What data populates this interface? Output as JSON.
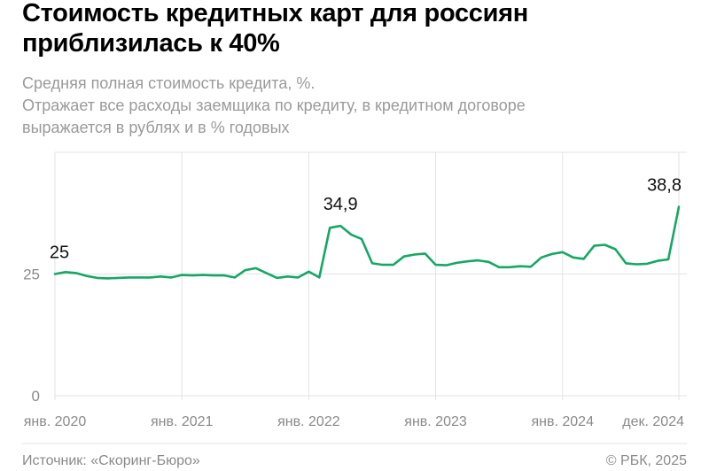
{
  "title": "Стоимость кредитных карт для россиян приблизилась к 40%",
  "subtitle_lines": [
    "Средняя полная стоимость кредита, %.",
    "Отражает все расходы заемщика по кредиту, в кредитном договоре",
    "выражается в рублях и в % годовых"
  ],
  "footer": {
    "source": "Источник: «Скоринг-Бюро»",
    "copyright": "© РБК, 2025"
  },
  "colors": {
    "line": "#16a765",
    "grid": "#e3e3e3",
    "tick_text": "#8a8a8a",
    "subtitle": "#9a9a9a"
  },
  "chart_data": {
    "type": "line",
    "title": "Стоимость кредитных карт для россиян приблизилась к 40%",
    "ylim": [
      0,
      50
    ],
    "yticks": [
      0,
      25
    ],
    "ytick_labels": [
      "0",
      "25"
    ],
    "grid": true,
    "x_start": "2020-01",
    "x_end": "2024-12",
    "xtick_labels": [
      {
        "label": "янв. 2020",
        "month": "2020-01"
      },
      {
        "label": "янв. 2021",
        "month": "2021-01"
      },
      {
        "label": "янв. 2022",
        "month": "2022-01"
      },
      {
        "label": "янв. 2023",
        "month": "2023-01"
      },
      {
        "label": "янв. 2024",
        "month": "2024-01"
      },
      {
        "label": "дек. 2024",
        "month": "2024-12"
      }
    ],
    "values": [
      25,
      25.4,
      25.2,
      24.6,
      24.2,
      24.1,
      24.2,
      24.3,
      24.3,
      24.3,
      24.5,
      24.3,
      24.8,
      24.7,
      24.8,
      24.7,
      24.7,
      24.3,
      25.8,
      26.2,
      25.2,
      24.2,
      24.5,
      24.3,
      25.5,
      24.3,
      34.5,
      34.9,
      33.1,
      32.2,
      27.2,
      26.9,
      26.9,
      28.6,
      29.0,
      29.2,
      26.9,
      26.8,
      27.3,
      27.6,
      27.8,
      27.5,
      26.4,
      26.4,
      26.6,
      26.5,
      28.4,
      29.1,
      29.5,
      28.4,
      28.1,
      30.8,
      31.0,
      30.1,
      27.2,
      27.0,
      27.1,
      27.7,
      28.0,
      38.8
    ],
    "annotations": [
      {
        "month": "2020-01",
        "label": "25"
      },
      {
        "month": "2022-04",
        "label": "34,9"
      },
      {
        "month": "2024-12",
        "label": "38,8"
      }
    ]
  }
}
